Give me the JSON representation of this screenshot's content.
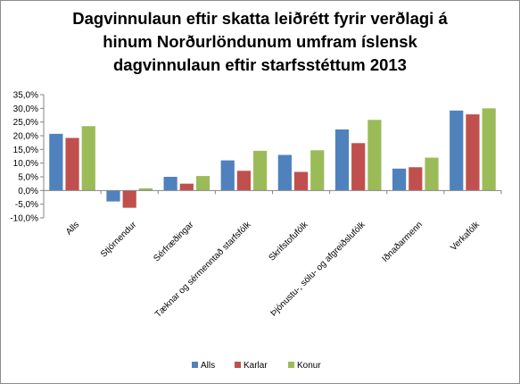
{
  "chart_data": {
    "type": "bar",
    "title_lines": [
      "Dagvinnulaun eftir skatta leiðrétt fyrir verðlagi á",
      "hinum Norðurlöndunum umfram íslensk",
      "dagvinnulaun eftir starfsstéttum 2013"
    ],
    "categories": [
      "Alls",
      "Stjórnendur",
      "Sérfræðingar",
      "Tæknar og sérmenntað starfsfólk",
      "Skrifstofufólk",
      "Þjónustu-, sölu- og afgreiðslufólk",
      "Iðnaðarmenn",
      "Verkafólk"
    ],
    "series": [
      {
        "name": "Alls",
        "color": "#4f81bd",
        "values": [
          20.7,
          -4.0,
          5.0,
          11.0,
          13.0,
          22.3,
          8.0,
          29.2
        ]
      },
      {
        "name": "Karlar",
        "color": "#c0504d",
        "values": [
          19.2,
          -6.3,
          2.5,
          7.2,
          6.8,
          17.3,
          8.5,
          27.8
        ]
      },
      {
        "name": "Konur",
        "color": "#9bbb59",
        "values": [
          23.5,
          0.8,
          5.3,
          14.5,
          14.7,
          25.8,
          12.0,
          30.0
        ]
      }
    ],
    "ylim": [
      -10,
      35
    ],
    "yticks": [
      35,
      30,
      25,
      20,
      15,
      10,
      5,
      0,
      -5,
      -10
    ],
    "ytick_labels": [
      "35,0%",
      "30,0%",
      "25,0%",
      "20,0%",
      "15,0%",
      "10,0%",
      "5,0%",
      "0,0%",
      "-5,0%",
      "-10,0%"
    ],
    "legend_position": "bottom",
    "grid": false
  }
}
